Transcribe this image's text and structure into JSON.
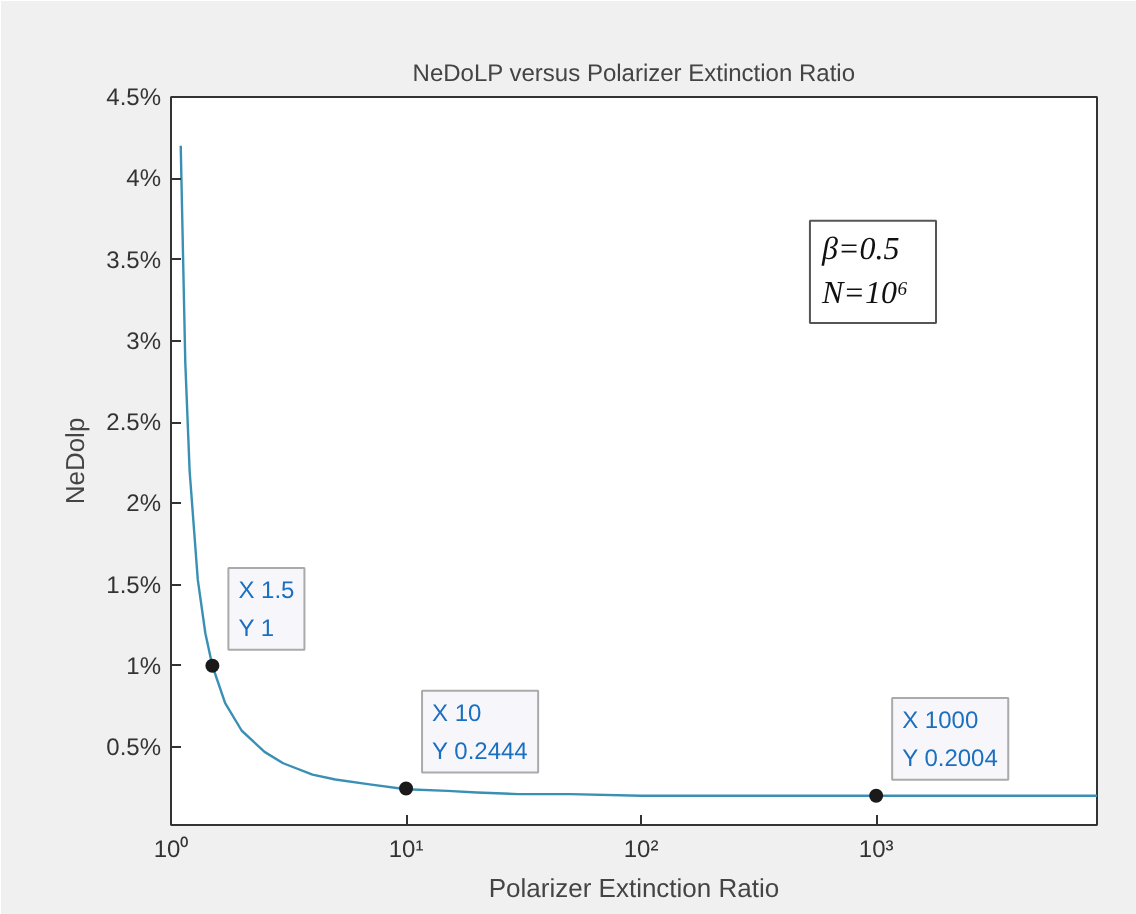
{
  "chart_data": {
    "type": "line",
    "title": "NeDoLP versus Polarizer Extinction Ratio",
    "xlabel": "Polarizer Extinction Ratio",
    "ylabel": "NeDolp",
    "log": "x",
    "grid": false,
    "marker": "none",
    "line_style": "solid",
    "xlim": [
      1,
      8700
    ],
    "xticks": [
      {
        "value": 1,
        "label": "10⁰"
      },
      {
        "value": 10,
        "label": "10¹"
      },
      {
        "value": 100,
        "label": "10²"
      },
      {
        "value": 1000,
        "label": "10³"
      }
    ],
    "ylim": [
      0.02,
      4.5
    ],
    "yticks": [
      {
        "value": 0.5,
        "label": "0.5%"
      },
      {
        "value": 1,
        "label": "1%"
      },
      {
        "value": 1.5,
        "label": "1.5%"
      },
      {
        "value": 2,
        "label": "2%"
      },
      {
        "value": 2.5,
        "label": "2.5%"
      },
      {
        "value": 3,
        "label": "3%"
      },
      {
        "value": 3.5,
        "label": "3.5%"
      },
      {
        "value": 4,
        "label": "4%"
      },
      {
        "value": 4.5,
        "label": "4.5%"
      }
    ],
    "series": [
      {
        "color": "#3a90b4",
        "x": [
          1.1,
          1.15,
          1.2,
          1.3,
          1.4,
          1.5,
          1.7,
          2,
          2.5,
          3,
          4,
          5,
          7,
          10,
          15,
          20,
          30,
          50,
          100,
          200,
          500,
          1000,
          2000,
          5000,
          8700
        ],
        "values": [
          4.2,
          2.87,
          2.2,
          1.53,
          1.2,
          1,
          0.77,
          0.6,
          0.47,
          0.4,
          0.33,
          0.3,
          0.27,
          0.24,
          0.23,
          0.22,
          0.21,
          0.21,
          0.2,
          0.2,
          0.2,
          0.2,
          0.2,
          0.2,
          0.2
        ]
      },
      {
        "type": "scatter",
        "marker": "circle",
        "color": "#1a1a1a",
        "x": [
          1.5,
          10,
          1000
        ],
        "values": [
          1,
          0.2444,
          0.2004
        ]
      }
    ],
    "annotations": [
      {
        "text": "X 1.5\nY 1",
        "x": 1.5,
        "y": 1
      },
      {
        "text": "X 10\nY 0.2444",
        "x": 10,
        "y": 0.2444
      },
      {
        "text": "X 1000\nY 0.2004",
        "x": 1000,
        "y": 0.2004
      },
      "β=0.5\nN=10⁶"
    ]
  }
}
